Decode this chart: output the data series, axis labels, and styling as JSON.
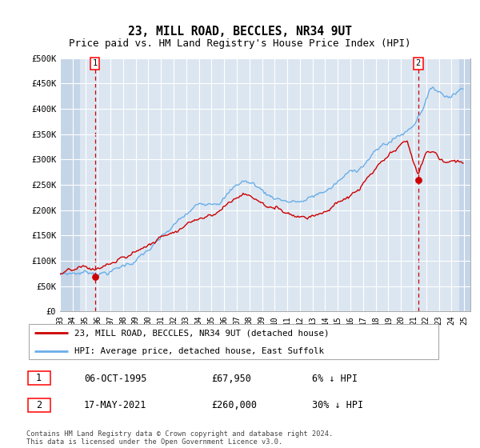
{
  "title": "23, MILL ROAD, BECCLES, NR34 9UT",
  "subtitle": "Price paid vs. HM Land Registry's House Price Index (HPI)",
  "ylabel_ticks": [
    "£0",
    "£50K",
    "£100K",
    "£150K",
    "£200K",
    "£250K",
    "£300K",
    "£350K",
    "£400K",
    "£450K",
    "£500K"
  ],
  "ytick_values": [
    0,
    50000,
    100000,
    150000,
    200000,
    250000,
    300000,
    350000,
    400000,
    450000,
    500000
  ],
  "ylim": [
    0,
    500000
  ],
  "xlim_start": 1993.0,
  "xlim_end": 2025.5,
  "xtick_years": [
    1993,
    1994,
    1995,
    1996,
    1997,
    1998,
    1999,
    2000,
    2001,
    2002,
    2003,
    2004,
    2005,
    2006,
    2007,
    2008,
    2009,
    2010,
    2011,
    2012,
    2013,
    2014,
    2015,
    2016,
    2017,
    2018,
    2019,
    2020,
    2021,
    2022,
    2023,
    2024,
    2025
  ],
  "xtick_labels": [
    "93",
    "94",
    "95",
    "96",
    "97",
    "98",
    "99",
    "00",
    "01",
    "02",
    "03",
    "04",
    "05",
    "06",
    "07",
    "08",
    "09",
    "10",
    "11",
    "12",
    "13",
    "14",
    "15",
    "16",
    "17",
    "18",
    "19",
    "20",
    "21",
    "22",
    "23",
    "24",
    "25"
  ],
  "hpi_color": "#6aaee8",
  "price_color": "#cc0000",
  "vline_color": "#cc0000",
  "background_plot": "#dce6f1",
  "background_hatch_color": "#c5d5e8",
  "legend_label_red": "23, MILL ROAD, BECCLES, NR34 9UT (detached house)",
  "legend_label_blue": "HPI: Average price, detached house, East Suffolk",
  "annotation1_year": 1995.77,
  "annotation1_value": 67950,
  "annotation2_year": 2021.37,
  "annotation2_value": 260000,
  "annotation1_date": "06-OCT-1995",
  "annotation1_price": "£67,950",
  "annotation1_hpi": "6% ↓ HPI",
  "annotation2_date": "17-MAY-2021",
  "annotation2_price": "£260,000",
  "annotation2_hpi": "30% ↓ HPI",
  "copyright_text": "Contains HM Land Registry data © Crown copyright and database right 2024.\nThis data is licensed under the Open Government Licence v3.0."
}
